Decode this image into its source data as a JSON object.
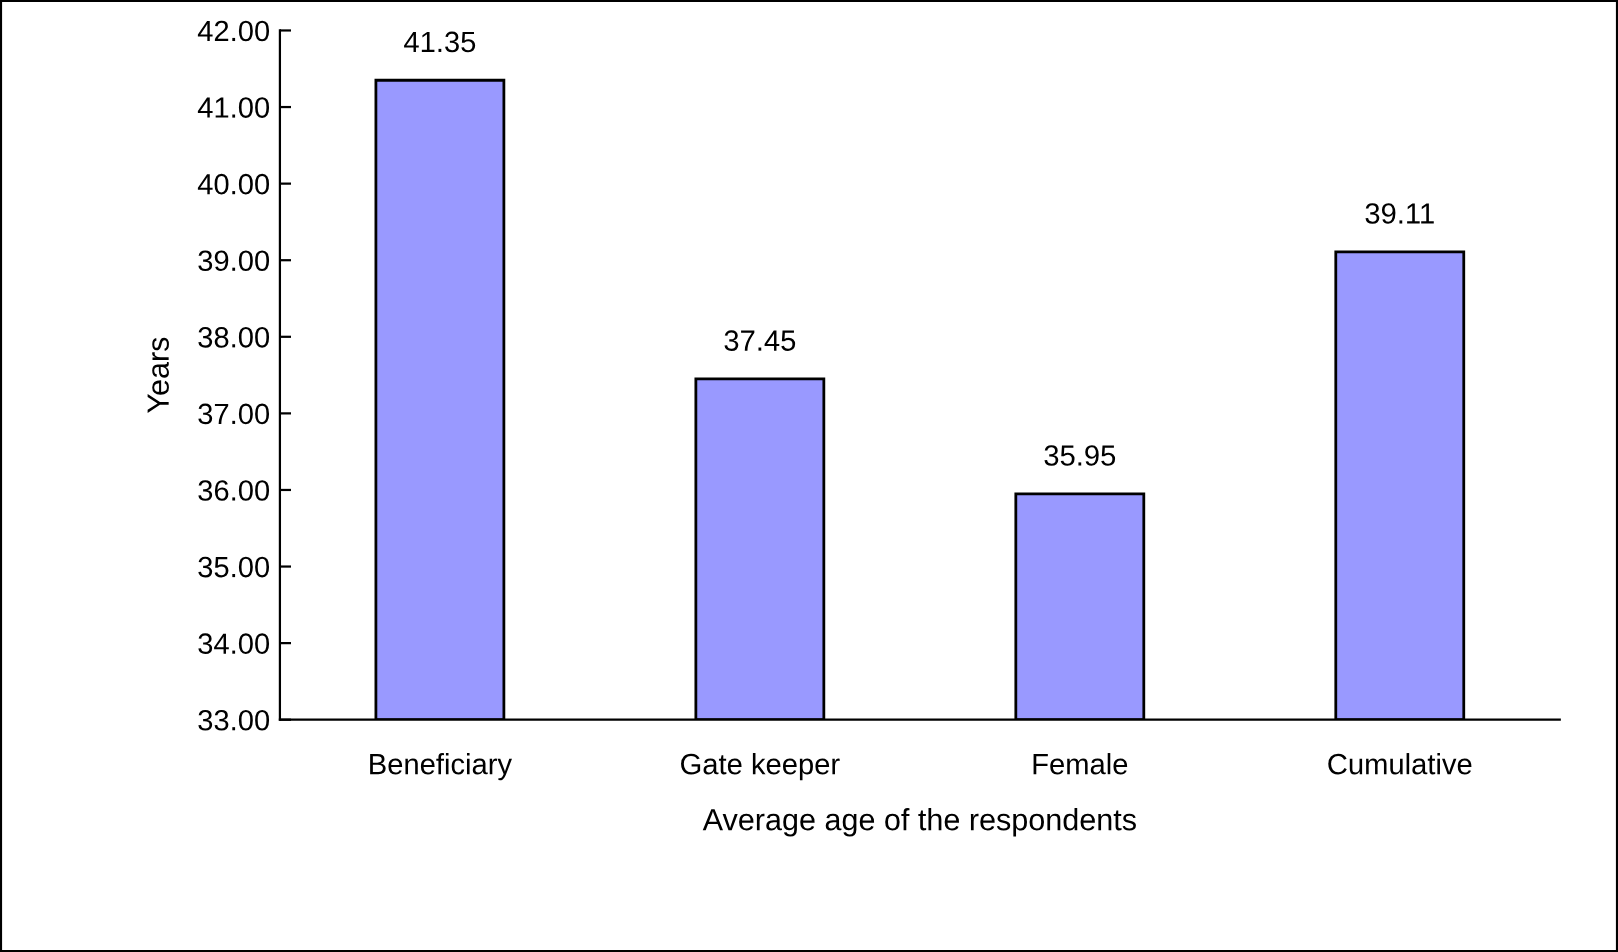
{
  "chart_data": {
    "type": "bar",
    "xlabel": "Average age of the respondents",
    "ylabel": "Years",
    "categories": [
      "Beneficiary",
      "Gate keeper",
      "Female",
      "Cumulative"
    ],
    "values": [
      41.35,
      37.45,
      35.95,
      39.11
    ],
    "color": "#9999ff",
    "ylim": [
      33,
      42
    ],
    "yticks": [
      {
        "value": 33,
        "label": "33.00"
      },
      {
        "value": 34,
        "label": "34.00"
      },
      {
        "value": 35,
        "label": "35.00"
      },
      {
        "value": 36,
        "label": "36.00"
      },
      {
        "value": 37,
        "label": "37.00"
      },
      {
        "value": 38,
        "label": "38.00"
      },
      {
        "value": 39,
        "label": "39.00"
      },
      {
        "value": 40,
        "label": "40.00"
      },
      {
        "value": 41,
        "label": "41.00"
      },
      {
        "value": 42,
        "label": "42.00"
      }
    ],
    "data_labels": true,
    "grid": false,
    "legend": false
  }
}
